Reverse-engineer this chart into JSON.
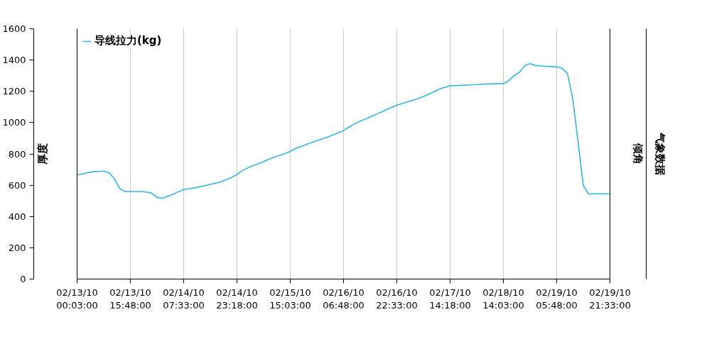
{
  "chart_data": {
    "type": "line",
    "categories": [
      "02/13/10 00:03:00",
      null,
      null,
      null,
      null,
      null,
      null,
      null,
      null,
      null,
      "02/13/10 15:48:00",
      null,
      null,
      null,
      null,
      null,
      null,
      null,
      null,
      null,
      "02/14/10 07:33:00",
      null,
      null,
      null,
      null,
      null,
      null,
      null,
      null,
      null,
      "02/14/10 23:18:00",
      null,
      null,
      null,
      null,
      null,
      null,
      null,
      null,
      null,
      "02/15/10 15:03:00",
      null,
      null,
      null,
      null,
      null,
      null,
      null,
      null,
      null,
      "02/16/10 06:48:00",
      null,
      null,
      null,
      null,
      null,
      null,
      null,
      null,
      null,
      "02/16/10 22:33:00",
      null,
      null,
      null,
      null,
      null,
      null,
      null,
      null,
      null,
      "02/17/10 14:18:00",
      null,
      null,
      null,
      null,
      null,
      null,
      null,
      null,
      null,
      "02/18/10 14:03:00",
      null,
      null,
      null,
      null,
      null,
      null,
      null,
      null,
      null,
      "02/19/10 05:48:00",
      null,
      null,
      null,
      null,
      null,
      null,
      null,
      null,
      null,
      "02/19/10 21:33:00"
    ],
    "series": [
      {
        "name": "导线拉力(kg)",
        "color": "#33b5e5",
        "values": [
          665,
          672,
          680,
          686,
          688,
          690,
          680,
          640,
          578,
          560,
          560,
          560,
          560,
          556,
          549,
          522,
          516,
          529,
          542,
          558,
          572,
          577,
          583,
          589,
          597,
          605,
          613,
          622,
          636,
          649,
          668,
          693,
          710,
          725,
          737,
          751,
          766,
          780,
          791,
          802,
          816,
          835,
          847,
          860,
          872,
          884,
          896,
          908,
          921,
          934,
          949,
          971,
          991,
          1007,
          1021,
          1036,
          1051,
          1066,
          1082,
          1097,
          1112,
          1122,
          1132,
          1142,
          1154,
          1167,
          1182,
          1198,
          1215,
          1225,
          1235,
          1237,
          1238,
          1240,
          1242,
          1243,
          1245,
          1247,
          1248,
          1250,
          1249,
          1268,
          1300,
          1321,
          1364,
          1377,
          1366,
          1362,
          1360,
          1358,
          1356,
          1347,
          1316,
          1154,
          880,
          597,
          543,
          545,
          545,
          545,
          545
        ]
      }
    ],
    "ylim": [
      0,
      1600
    ],
    "yticks": [
      0,
      200,
      400,
      600,
      800,
      1000,
      1200,
      1400,
      1600
    ],
    "annotations": [
      "厚度",
      "倾角",
      "气象数据"
    ],
    "grid": "x",
    "legend": "top left",
    "marker": "none",
    "line_style": "solid"
  }
}
